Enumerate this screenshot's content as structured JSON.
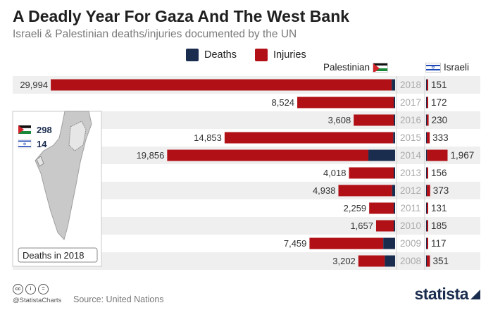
{
  "title": "A Deadly Year For Gaza And The West Bank",
  "subtitle": "Israeli & Palestinian deaths/injuries documented by the UN",
  "legend": {
    "deaths": "Deaths",
    "injuries": "Injuries"
  },
  "palestinian_label": "Palestinian",
  "israeli_label": "Israeli",
  "inset": {
    "palestinian_deaths_2018": "298",
    "israeli_deaths_2018": "14",
    "caption": "Deaths in 2018"
  },
  "colors": {
    "deaths": "#1b2d4f",
    "injuries": "#b01016",
    "stripe": "#efefef",
    "year": "#aaaaaa"
  },
  "footer": {
    "handle": "@StatistaCharts",
    "source": "Source: United Nations",
    "brand": "statista"
  },
  "chart_data": {
    "type": "bar",
    "categories": [
      "2018",
      "2017",
      "2016",
      "2015",
      "2014",
      "2013",
      "2012",
      "2011",
      "2010",
      "2009",
      "2008"
    ],
    "palestinian_totals": [
      29994,
      8524,
      3608,
      14853,
      19856,
      4018,
      4938,
      2259,
      1657,
      7459,
      3202
    ],
    "palestinian_labels": [
      "29,994",
      "8,524",
      "3,608",
      "14,853",
      "19,856",
      "4,018",
      "4,938",
      "2,259",
      "1,657",
      "7,459",
      "3,202"
    ],
    "palestinian_deaths": [
      298,
      77,
      109,
      169,
      2329,
      39,
      260,
      124,
      95,
      1034,
      899
    ],
    "israeli_totals": [
      151,
      172,
      230,
      333,
      1967,
      156,
      373,
      131,
      185,
      117,
      351
    ],
    "israeli_labels": [
      "151",
      "172",
      "230",
      "333",
      "1,967",
      "156",
      "373",
      "131",
      "185",
      "117",
      "351"
    ],
    "israeli_deaths": [
      14,
      13,
      13,
      28,
      88,
      6,
      7,
      11,
      9,
      9,
      35
    ],
    "xlim_palestinian": [
      0,
      30000
    ],
    "xlim_israeli": [
      0,
      2000
    ]
  }
}
